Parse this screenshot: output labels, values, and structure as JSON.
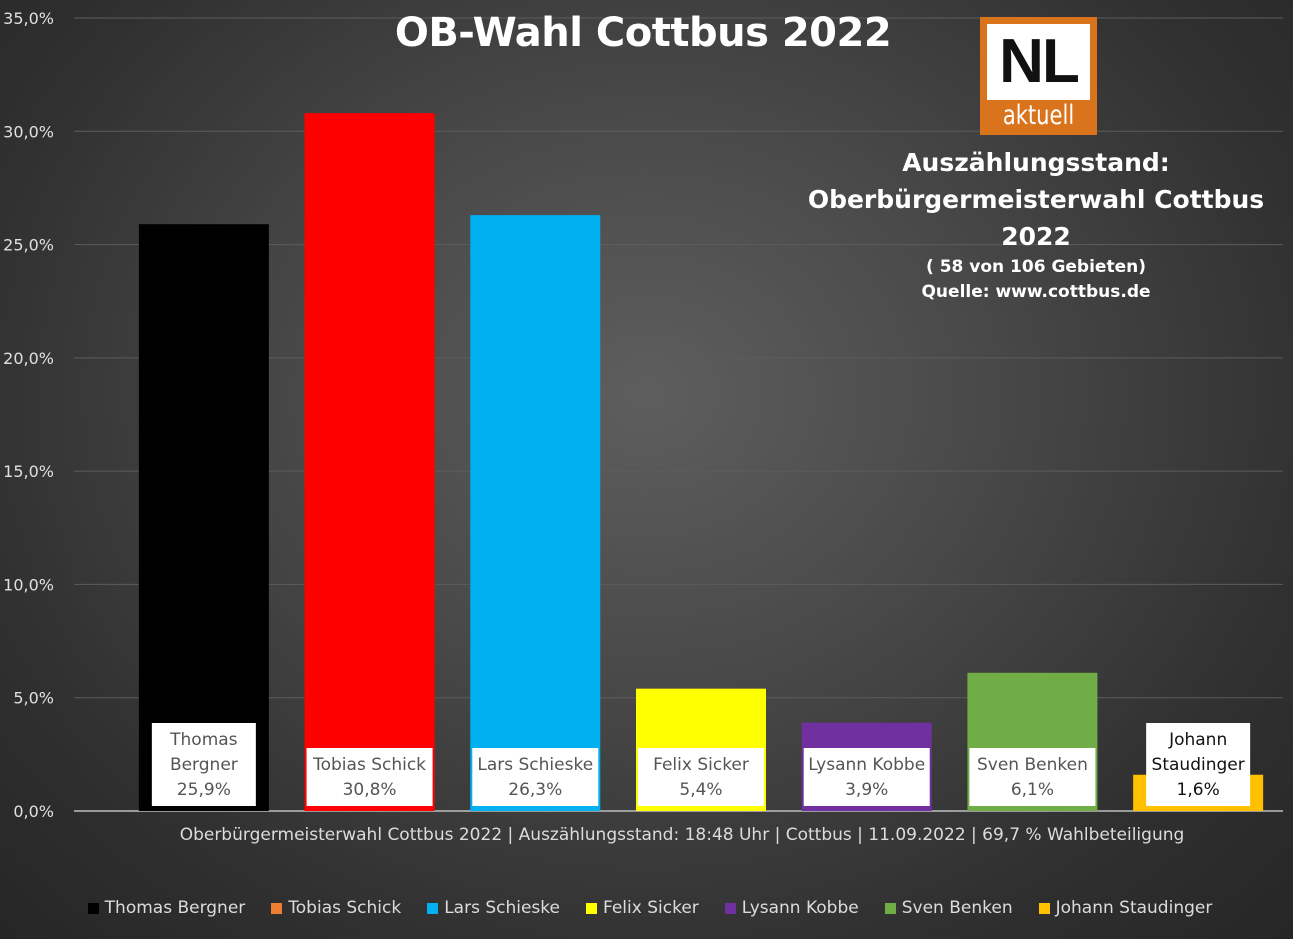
{
  "chart_data": {
    "type": "bar",
    "title": "OB-Wahl Cottbus 2022",
    "categories": [
      "Thomas Bergner",
      "Tobias Schick",
      "Lars Schieske",
      "Felix Sicker",
      "Lysann Kobbe",
      "Sven Benken",
      "Johann Staudinger"
    ],
    "values": [
      25.9,
      30.8,
      26.3,
      5.4,
      3.9,
      6.1,
      1.6
    ],
    "value_labels": [
      "25,9%",
      "30,8%",
      "26,3%",
      "5,4%",
      "3,9%",
      "6,1%",
      "1,6%"
    ],
    "bar_labels": [
      [
        "Thomas",
        "Bergner"
      ],
      [
        "Tobias Schick"
      ],
      [
        "Lars Schieske"
      ],
      [
        "Felix Sicker"
      ],
      [
        "Lysann Kobbe"
      ],
      [
        "Sven Benken"
      ],
      [
        "Johann",
        "Staudinger"
      ]
    ],
    "colors": [
      "#000000",
      "#ff0000",
      "#00b0f0",
      "#ffff00",
      "#7030a0",
      "#70ad47",
      "#ffc000"
    ],
    "ylim": [
      0,
      35
    ],
    "yticks": [
      0,
      5,
      10,
      15,
      20,
      25,
      30,
      35
    ],
    "ytick_labels": [
      "0,0%",
      "5,0%",
      "10,0%",
      "15,0%",
      "20,0%",
      "25,0%",
      "30,0%",
      "35,0%"
    ],
    "grid": true,
    "legend_position": "bottom",
    "xlabel": "",
    "ylabel": ""
  },
  "logo": {
    "main": "NL",
    "sub": "aktuell"
  },
  "info": {
    "line1": "Auszählungsstand:",
    "line2": "Oberbürgermeisterwahl Cottbus 2022",
    "line3": "( 58 von 106 Gebieten)",
    "line4": "Quelle: www.cottbus.de"
  },
  "subtitle": "Oberbürgermeisterwahl Cottbus 2022 | Auszählungsstand: 18:48 Uhr | Cottbus | 11.09.2022 | 69,7 % Wahlbeteiligung",
  "legend": [
    {
      "label": "Thomas Bergner",
      "color": "#000000"
    },
    {
      "label": "Tobias Schick",
      "color": "#ed7d31"
    },
    {
      "label": "Lars Schieske",
      "color": "#00b0f0"
    },
    {
      "label": "Felix Sicker",
      "color": "#ffff00"
    },
    {
      "label": "Lysann Kobbe",
      "color": "#7030a0"
    },
    {
      "label": "Sven Benken",
      "color": "#70ad47"
    },
    {
      "label": "Johann Staudinger",
      "color": "#ffc000"
    }
  ]
}
